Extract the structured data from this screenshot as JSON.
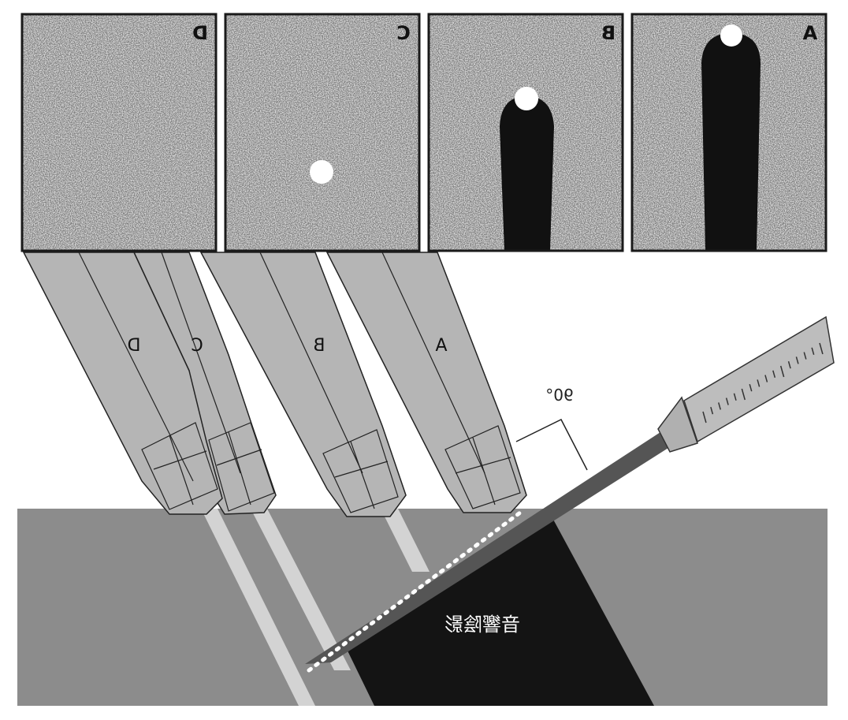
{
  "panels": [
    {
      "label": "A"
    },
    {
      "label": "B"
    },
    {
      "label": "C"
    },
    {
      "label": "D"
    }
  ],
  "probes": [
    {
      "label": "A"
    },
    {
      "label": "B"
    },
    {
      "label": "C"
    },
    {
      "label": "D"
    }
  ],
  "angle_label": "90°",
  "shadow_label": "音響陰影",
  "colors": {
    "noise_base": "#8a8a8a",
    "frame": "#1a1a1a",
    "needle_shaft": "#555555",
    "shadow": "#141414",
    "tissue": "#8c8c8c",
    "probe": "#b5b5b5",
    "beam": "#d3d3d3",
    "echo_dot": "#ffffff"
  }
}
